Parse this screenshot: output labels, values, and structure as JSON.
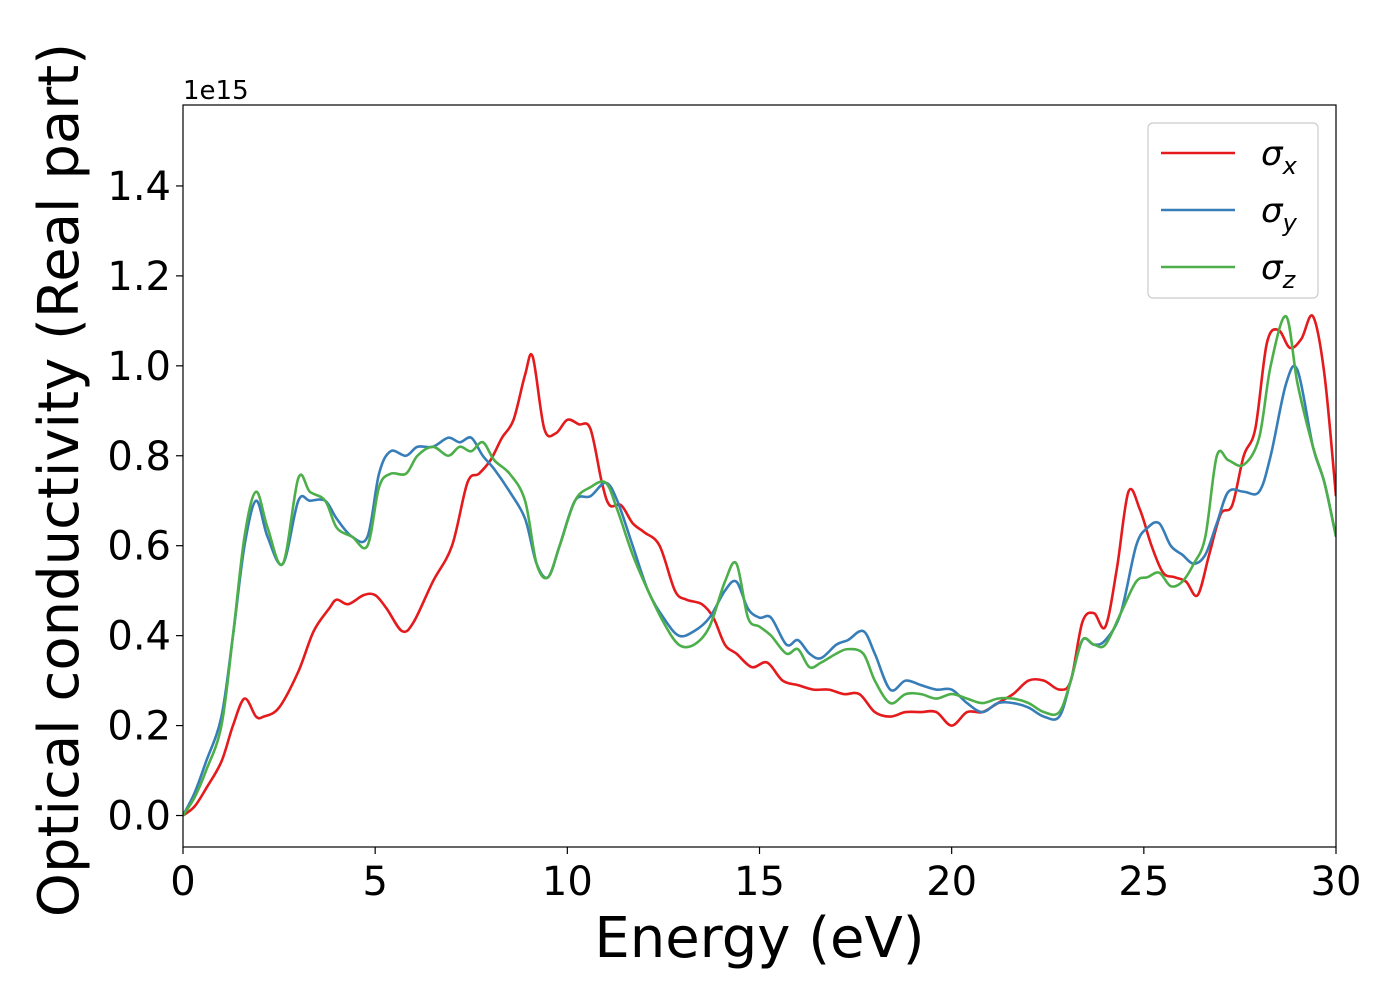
{
  "chart_data": {
    "type": "line",
    "title": "",
    "xlabel": "Energy (eV)",
    "ylabel": "Optical conductivity (Real part)",
    "y_offset_label": "1e15",
    "xlim": [
      0,
      30
    ],
    "ylim": [
      -0.07,
      1.58
    ],
    "xticks": [
      0,
      5,
      10,
      15,
      20,
      25,
      30
    ],
    "xtick_labels": [
      "0",
      "5",
      "10",
      "15",
      "20",
      "25",
      "30"
    ],
    "yticks": [
      0.0,
      0.2,
      0.4,
      0.6,
      0.8,
      1.0,
      1.2,
      1.4
    ],
    "ytick_labels": [
      "0.0",
      "0.2",
      "0.4",
      "0.6",
      "0.8",
      "1.0",
      "1.2",
      "1.4"
    ],
    "grid": false,
    "legend_position": "top-right",
    "series": [
      {
        "name": "σx",
        "legend_base": "σ",
        "legend_sub": "x",
        "color": "#e41a1c",
        "x": [
          0,
          0.3,
          0.6,
          1.0,
          1.3,
          1.6,
          1.9,
          2.1,
          2.5,
          3.0,
          3.4,
          3.8,
          4.0,
          4.3,
          4.7,
          5.0,
          5.3,
          5.7,
          6.0,
          6.5,
          7.0,
          7.4,
          7.7,
          8.0,
          8.3,
          8.6,
          8.9,
          9.1,
          9.4,
          9.7,
          10.0,
          10.3,
          10.6,
          10.9,
          11.1,
          11.4,
          11.7,
          12.0,
          12.4,
          12.8,
          13.1,
          13.5,
          13.8,
          14.1,
          14.4,
          14.8,
          15.2,
          15.6,
          16.0,
          16.4,
          16.8,
          17.2,
          17.6,
          18.0,
          18.4,
          18.8,
          19.2,
          19.6,
          20.0,
          20.4,
          20.8,
          21.2,
          21.6,
          22.0,
          22.4,
          22.8,
          23.1,
          23.4,
          23.7,
          24.0,
          24.3,
          24.6,
          24.9,
          25.2,
          25.5,
          25.8,
          26.1,
          26.4,
          26.7,
          27.0,
          27.3,
          27.6,
          27.9,
          28.2,
          28.5,
          28.8,
          29.1,
          29.4,
          29.7,
          30.0
        ],
        "y": [
          0.0,
          0.02,
          0.06,
          0.12,
          0.2,
          0.26,
          0.22,
          0.22,
          0.24,
          0.32,
          0.41,
          0.46,
          0.48,
          0.47,
          0.49,
          0.49,
          0.46,
          0.41,
          0.43,
          0.52,
          0.6,
          0.74,
          0.76,
          0.79,
          0.84,
          0.88,
          0.98,
          1.02,
          0.86,
          0.85,
          0.88,
          0.87,
          0.86,
          0.74,
          0.69,
          0.69,
          0.65,
          0.63,
          0.6,
          0.5,
          0.48,
          0.47,
          0.44,
          0.38,
          0.36,
          0.33,
          0.34,
          0.3,
          0.29,
          0.28,
          0.28,
          0.27,
          0.27,
          0.23,
          0.22,
          0.23,
          0.23,
          0.23,
          0.2,
          0.23,
          0.23,
          0.25,
          0.27,
          0.3,
          0.3,
          0.28,
          0.3,
          0.43,
          0.45,
          0.42,
          0.55,
          0.72,
          0.68,
          0.6,
          0.54,
          0.53,
          0.52,
          0.49,
          0.58,
          0.67,
          0.69,
          0.8,
          0.86,
          1.05,
          1.08,
          1.04,
          1.06,
          1.11,
          0.98,
          0.71
        ]
      },
      {
        "name": "σy",
        "legend_base": "σ",
        "legend_sub": "y",
        "color": "#377eb8",
        "x": [
          0,
          0.3,
          0.6,
          1.0,
          1.3,
          1.6,
          1.9,
          2.2,
          2.6,
          3.0,
          3.3,
          3.7,
          4.0,
          4.4,
          4.8,
          5.1,
          5.4,
          5.8,
          6.1,
          6.5,
          6.9,
          7.2,
          7.5,
          7.8,
          8.1,
          8.5,
          8.9,
          9.2,
          9.5,
          9.8,
          10.2,
          10.6,
          11.0,
          11.3,
          11.7,
          12.1,
          12.5,
          12.9,
          13.3,
          13.7,
          14.1,
          14.4,
          14.7,
          15.0,
          15.3,
          15.7,
          16.0,
          16.3,
          16.6,
          17.0,
          17.3,
          17.7,
          18.0,
          18.4,
          18.8,
          19.2,
          19.6,
          20.0,
          20.4,
          20.8,
          21.2,
          21.6,
          22.0,
          22.4,
          22.8,
          23.1,
          23.4,
          23.7,
          24.0,
          24.4,
          24.8,
          25.1,
          25.4,
          25.7,
          26.0,
          26.3,
          26.6,
          26.9,
          27.2,
          27.6,
          28.0,
          28.3,
          28.7,
          29.0,
          29.4,
          29.7,
          30.0
        ],
        "y": [
          0.0,
          0.05,
          0.12,
          0.22,
          0.4,
          0.6,
          0.7,
          0.62,
          0.56,
          0.7,
          0.7,
          0.7,
          0.66,
          0.62,
          0.62,
          0.76,
          0.81,
          0.8,
          0.82,
          0.82,
          0.84,
          0.83,
          0.84,
          0.8,
          0.77,
          0.72,
          0.66,
          0.56,
          0.53,
          0.6,
          0.7,
          0.71,
          0.74,
          0.7,
          0.6,
          0.5,
          0.44,
          0.4,
          0.41,
          0.44,
          0.5,
          0.52,
          0.46,
          0.44,
          0.44,
          0.38,
          0.39,
          0.36,
          0.35,
          0.38,
          0.39,
          0.41,
          0.36,
          0.28,
          0.3,
          0.29,
          0.28,
          0.28,
          0.25,
          0.23,
          0.25,
          0.25,
          0.24,
          0.22,
          0.22,
          0.3,
          0.39,
          0.38,
          0.39,
          0.45,
          0.6,
          0.64,
          0.65,
          0.6,
          0.58,
          0.56,
          0.58,
          0.65,
          0.72,
          0.72,
          0.72,
          0.8,
          0.96,
          0.99,
          0.82,
          0.74,
          0.62
        ]
      },
      {
        "name": "σz",
        "legend_base": "σ",
        "legend_sub": "z",
        "color": "#4daf4a",
        "x": [
          0,
          0.3,
          0.6,
          1.0,
          1.3,
          1.6,
          1.9,
          2.2,
          2.6,
          3.0,
          3.3,
          3.7,
          4.0,
          4.4,
          4.8,
          5.1,
          5.4,
          5.8,
          6.1,
          6.5,
          6.9,
          7.2,
          7.5,
          7.8,
          8.1,
          8.5,
          8.9,
          9.2,
          9.5,
          9.8,
          10.2,
          10.6,
          11.0,
          11.3,
          11.7,
          12.1,
          12.5,
          12.9,
          13.3,
          13.7,
          14.1,
          14.4,
          14.7,
          15.0,
          15.3,
          15.7,
          16.0,
          16.3,
          16.6,
          17.0,
          17.3,
          17.7,
          18.0,
          18.4,
          18.8,
          19.2,
          19.6,
          20.0,
          20.4,
          20.8,
          21.2,
          21.6,
          22.0,
          22.4,
          22.8,
          23.1,
          23.4,
          23.7,
          24.0,
          24.4,
          24.8,
          25.1,
          25.4,
          25.7,
          26.0,
          26.3,
          26.6,
          26.9,
          27.2,
          27.6,
          28.0,
          28.3,
          28.7,
          29.0,
          29.4,
          29.7,
          30.0
        ],
        "y": [
          0.0,
          0.04,
          0.1,
          0.2,
          0.4,
          0.62,
          0.72,
          0.64,
          0.56,
          0.75,
          0.72,
          0.7,
          0.64,
          0.62,
          0.6,
          0.73,
          0.76,
          0.76,
          0.8,
          0.82,
          0.8,
          0.82,
          0.81,
          0.83,
          0.79,
          0.76,
          0.7,
          0.56,
          0.53,
          0.6,
          0.7,
          0.73,
          0.74,
          0.68,
          0.58,
          0.5,
          0.43,
          0.38,
          0.38,
          0.42,
          0.52,
          0.56,
          0.44,
          0.42,
          0.4,
          0.36,
          0.37,
          0.33,
          0.34,
          0.36,
          0.37,
          0.36,
          0.3,
          0.25,
          0.27,
          0.27,
          0.26,
          0.27,
          0.26,
          0.25,
          0.26,
          0.26,
          0.25,
          0.23,
          0.23,
          0.3,
          0.39,
          0.38,
          0.38,
          0.45,
          0.52,
          0.53,
          0.54,
          0.51,
          0.52,
          0.56,
          0.62,
          0.8,
          0.79,
          0.78,
          0.84,
          1.0,
          1.11,
          0.96,
          0.82,
          0.74,
          0.62
        ]
      }
    ]
  }
}
